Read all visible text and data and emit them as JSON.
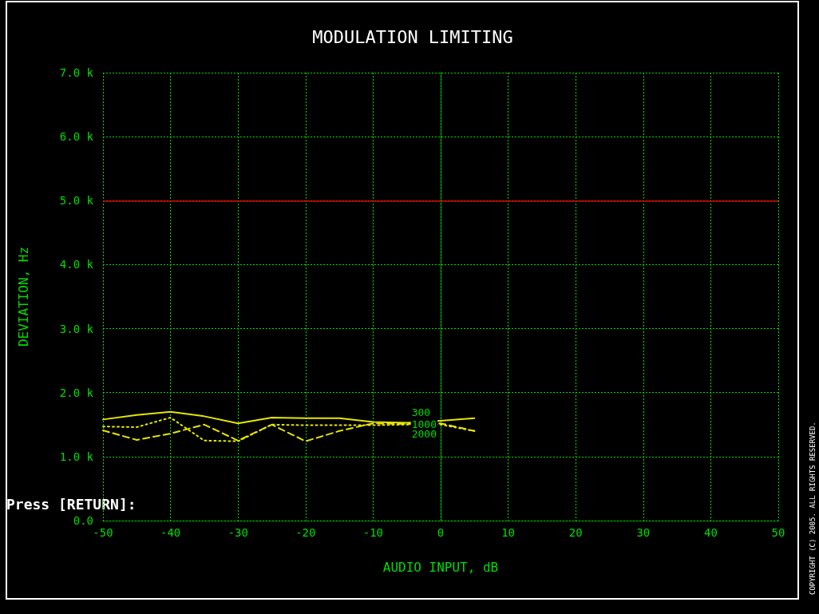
{
  "chart_data": {
    "type": "line",
    "title": "MODULATION LIMITING",
    "xlabel": "AUDIO INPUT, dB",
    "ylabel": "DEVIATION, Hz",
    "x": [
      -50,
      -45,
      -40,
      -35,
      -30,
      -25,
      -20,
      -15,
      -10,
      -5,
      0,
      5
    ],
    "xlim": [
      -50,
      50
    ],
    "xticks": [
      -50,
      -40,
      -30,
      -20,
      -10,
      0,
      10,
      20,
      30,
      40,
      50
    ],
    "ylim": [
      0,
      7000
    ],
    "yticks": [
      {
        "value": 0,
        "label": "0.0"
      },
      {
        "value": 1000,
        "label": "1.0 k"
      },
      {
        "value": 2000,
        "label": "2.0 k"
      },
      {
        "value": 3000,
        "label": "3.0 k"
      },
      {
        "value": 4000,
        "label": "4.0 k"
      },
      {
        "value": 5000,
        "label": "5.0 k"
      },
      {
        "value": 6000,
        "label": "6.0 k"
      },
      {
        "value": 7000,
        "label": "7.0 k"
      }
    ],
    "grid": true,
    "legend": false,
    "marker": "none",
    "series": [
      {
        "name": "300",
        "color": "#e6e600",
        "line_style": "solid",
        "values": [
          1580,
          1650,
          1700,
          1630,
          1520,
          1610,
          1600,
          1600,
          1540,
          1530,
          1560,
          1600
        ]
      },
      {
        "name": "1000",
        "color": "#e6e600",
        "line_style": "dotted",
        "values": [
          1470,
          1460,
          1610,
          1250,
          1240,
          1500,
          1490,
          1490,
          1490,
          1500,
          1500,
          1400
        ]
      },
      {
        "name": "2000",
        "color": "#e6e600",
        "line_style": "dashed",
        "values": [
          1410,
          1260,
          1360,
          1500,
          1250,
          1500,
          1240,
          1400,
          1520,
          1510,
          1520,
          1400
        ]
      }
    ],
    "ref_lines": [
      {
        "axis": "y",
        "value": 5000,
        "color": "#dd0000",
        "line_style": "solid"
      }
    ],
    "annotations": [
      "Press [RETURN]:",
      "COPYRIGHT (C) 2005. ALL RIGHTS RESERVED."
    ]
  }
}
